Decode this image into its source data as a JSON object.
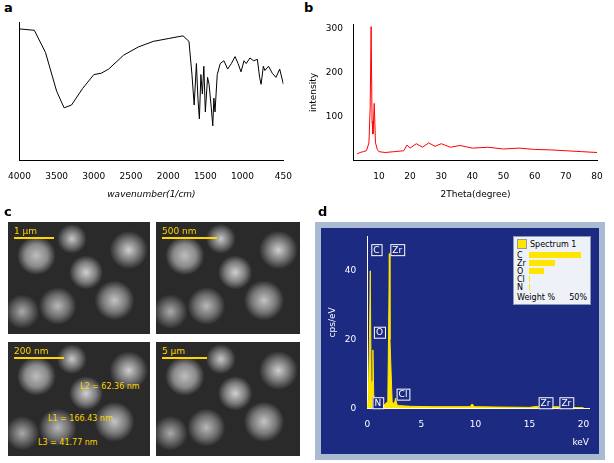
{
  "chart_data": [
    {
      "type": "line",
      "title": "a",
      "x_label": "wavenumber(1/cm)",
      "x": [
        4000,
        3800,
        3650,
        3500,
        3400,
        3300,
        3150,
        3000,
        2900,
        2800,
        2600,
        2400,
        2200,
        2000,
        1800,
        1720,
        1680,
        1650,
        1620,
        1600,
        1580,
        1560,
        1540,
        1520,
        1500,
        1470,
        1450,
        1420,
        1400,
        1385,
        1370,
        1340,
        1300,
        1250,
        1200,
        1150,
        1100,
        1060,
        1020,
        980,
        950,
        900,
        850,
        800,
        770,
        750,
        720,
        700,
        650,
        600,
        550,
        500,
        450
      ],
      "values": [
        95,
        94,
        78,
        50,
        38,
        40,
        52,
        62,
        63,
        66,
        76,
        82,
        86,
        88,
        90,
        86,
        62,
        40,
        70,
        45,
        30,
        62,
        48,
        68,
        35,
        60,
        55,
        38,
        25,
        45,
        35,
        62,
        70,
        72,
        66,
        70,
        75,
        70,
        64,
        72,
        70,
        74,
        72,
        73,
        60,
        55,
        68,
        65,
        68,
        63,
        60,
        66,
        55
      ],
      "color": "#000000",
      "xlim": [
        4000,
        450
      ],
      "xticks": [
        4000,
        3500,
        3000,
        2500,
        2000,
        1500,
        1000,
        450
      ],
      "ylim": [
        0,
        100
      ],
      "tick_labels": "x",
      "grid": false
    },
    {
      "type": "line",
      "title": "b",
      "x_label": "2Theta(degree)",
      "y_label": "intensity",
      "x": [
        3,
        4,
        5,
        6,
        6.8,
        7.2,
        7.5,
        7.8,
        8.1,
        8.5,
        8.9,
        9.5,
        10,
        12,
        15,
        18,
        19,
        20,
        22,
        24,
        26,
        28,
        30,
        33,
        36,
        40,
        45,
        50,
        55,
        60,
        65,
        70,
        75,
        80
      ],
      "values": [
        15,
        18,
        20,
        22,
        40,
        120,
        305,
        90,
        60,
        130,
        40,
        25,
        20,
        18,
        20,
        22,
        35,
        28,
        38,
        30,
        40,
        32,
        38,
        30,
        34,
        28,
        30,
        26,
        28,
        25,
        24,
        22,
        20,
        18
      ],
      "color": "#ff0000",
      "xlim": [
        2,
        80
      ],
      "xticks": [
        10,
        20,
        30,
        40,
        50,
        60,
        70,
        80
      ],
      "ylim": [
        0,
        310
      ],
      "yticks": [
        100,
        200,
        300
      ],
      "grid": false
    },
    {
      "type": "area",
      "title": "d",
      "x_label": "keV",
      "y_label": "cps/eV",
      "x": [
        0,
        0.1,
        0.2,
        0.28,
        0.36,
        0.45,
        0.52,
        0.6,
        0.75,
        1.0,
        1.5,
        1.9,
        2.0,
        2.04,
        2.1,
        2.3,
        2.5,
        2.62,
        2.75,
        3.0,
        4,
        6,
        8,
        9.5,
        9.7,
        9.9,
        12,
        15,
        15.75,
        16.2,
        17.67,
        18.2,
        20
      ],
      "values": [
        0,
        3,
        20,
        40,
        6,
        8,
        17,
        4,
        1.5,
        1,
        0.8,
        2,
        30,
        45,
        20,
        2,
        1.2,
        3,
        1,
        0.8,
        0.6,
        0.5,
        0.5,
        0.5,
        1.3,
        0.5,
        0.4,
        0.3,
        0.6,
        0.3,
        0.5,
        0.3,
        0.2
      ],
      "color": "#ffe600",
      "xlim": [
        0,
        20.5
      ],
      "xticks": [
        0,
        5,
        10,
        15,
        20
      ],
      "ylim": [
        0,
        50
      ],
      "yticks": [
        0,
        20,
        40
      ],
      "grid": false,
      "annotations": [
        {
          "x": 0.28,
          "y": 46,
          "text": "C"
        },
        {
          "x": 0.52,
          "y": 22,
          "text": "O"
        },
        {
          "x": 0.39,
          "y": 1.5,
          "text": "N"
        },
        {
          "x": 2.04,
          "y": 46,
          "text": "Zr"
        },
        {
          "x": 2.62,
          "y": 4,
          "text": "Cl"
        },
        {
          "x": 15.75,
          "y": 1.5,
          "text": "Zr"
        },
        {
          "x": 17.67,
          "y": 1.5,
          "text": "Zr"
        }
      ],
      "inset": {
        "title": "Spectrum 1",
        "x_label": "Weight %",
        "categories": [
          "C",
          "Zr",
          "O",
          "Cl",
          "N"
        ],
        "values": [
          48,
          24,
          14,
          0.5,
          0.3
        ],
        "xlim": [
          0,
          50
        ],
        "xticks": [
          {
            "value": 50,
            "label": "50%"
          }
        ],
        "color": "#ffe600"
      }
    }
  ],
  "sem_images": {
    "title": "c",
    "panels": [
      {
        "scale_bar": "1 μm"
      },
      {
        "scale_bar": "500 nm"
      },
      {
        "scale_bar": "200 nm",
        "annotations": [
          "L2 = 62.36 nm",
          "L1 = 166.43 nm",
          "L3 = 41.77 nm"
        ]
      },
      {
        "scale_bar": "5 μm"
      }
    ]
  }
}
